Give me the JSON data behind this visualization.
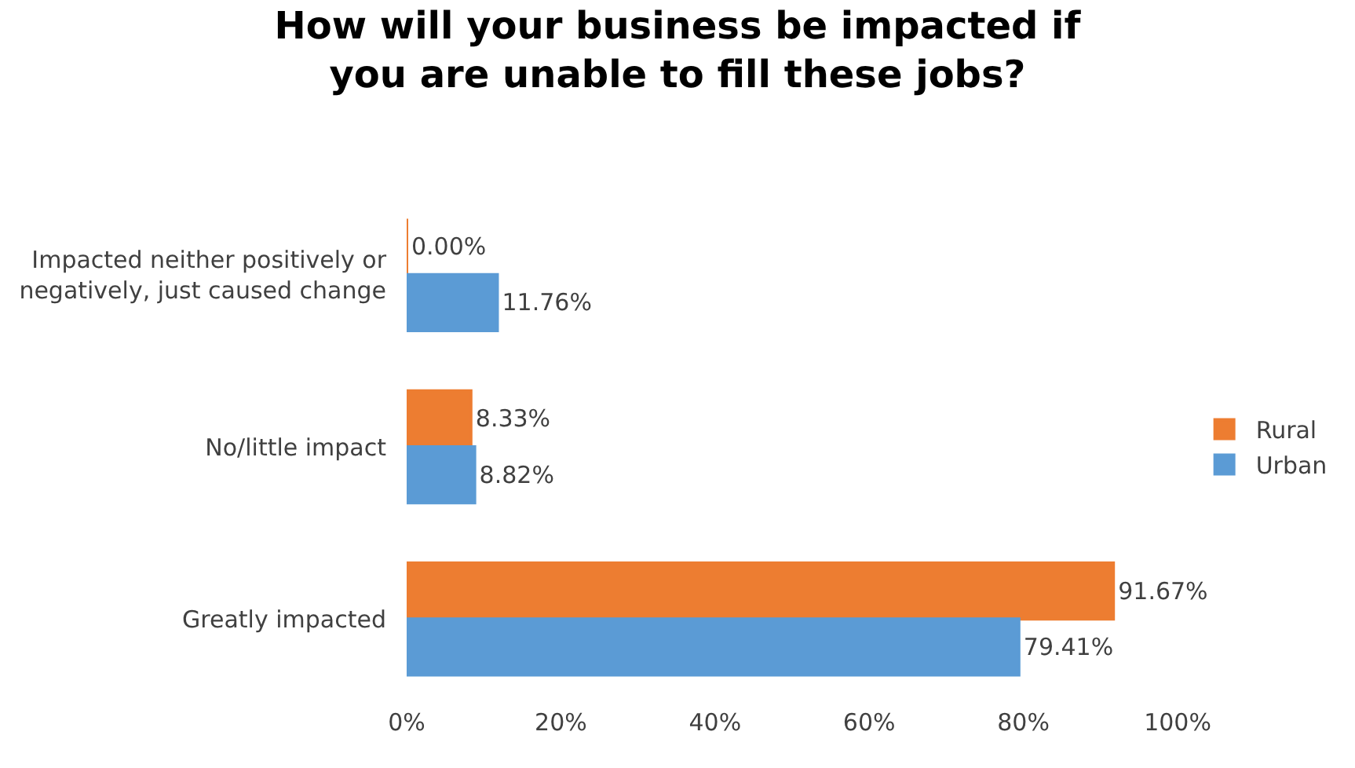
{
  "chart_data": {
    "type": "bar",
    "orientation": "horizontal",
    "title": "How will your business be impacted if you are unable to fill these jobs?",
    "categories": [
      "Impacted neither positively or negatively, just caused change",
      "No/little impact",
      "Greatly impacted"
    ],
    "series": [
      {
        "name": "Rural",
        "color": "#ed7d31",
        "values": [
          0.0,
          8.33,
          91.67
        ],
        "value_labels": [
          "0.00%",
          "8.33%",
          "91.67%"
        ]
      },
      {
        "name": "Urban",
        "color": "#5b9bd5",
        "values": [
          11.76,
          8.82,
          79.41
        ],
        "value_labels": [
          "11.76%",
          "8.82%",
          "79.41%"
        ]
      }
    ],
    "xlim": [
      0,
      100
    ],
    "xticks": [
      {
        "value": 0,
        "label": "0%"
      },
      {
        "value": 20,
        "label": "20%"
      },
      {
        "value": 40,
        "label": "40%"
      },
      {
        "value": 60,
        "label": "60%"
      },
      {
        "value": 80,
        "label": "80%"
      },
      {
        "value": 100,
        "label": "100%"
      }
    ],
    "legend": "right"
  }
}
